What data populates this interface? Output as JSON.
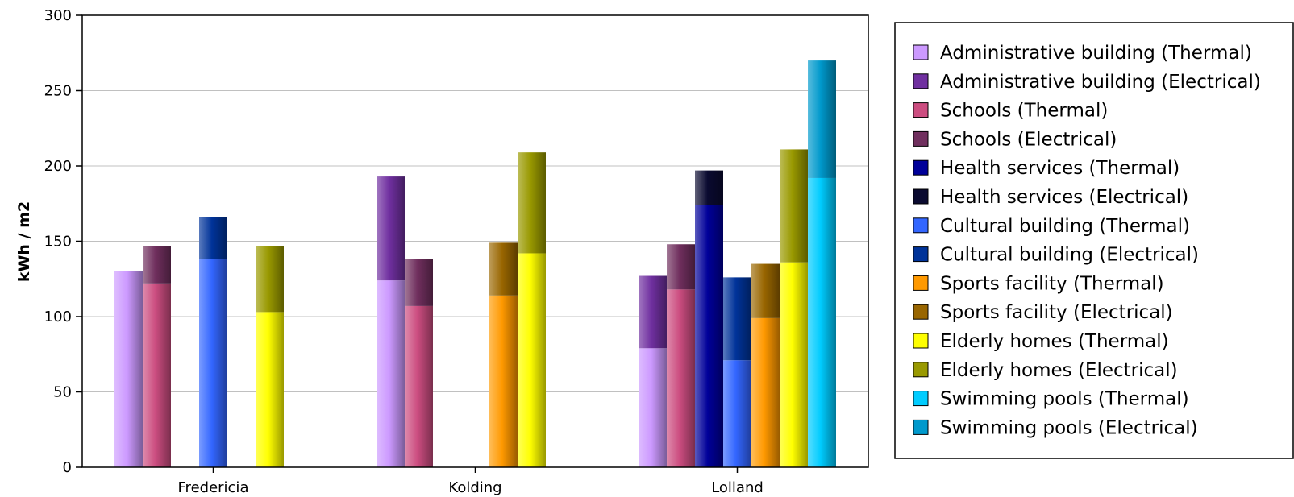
{
  "chart_data": {
    "type": "bar",
    "stacked_groups": true,
    "title": "",
    "xlabel": "",
    "ylabel": "kWh / m2",
    "ylim": [
      0,
      300
    ],
    "yticks": [
      0,
      50,
      100,
      150,
      200,
      250,
      300
    ],
    "grid": true,
    "legend_position": "right",
    "categories": [
      "Fredericia",
      "Kolding",
      "Lolland"
    ],
    "building_types": [
      "Administrative building",
      "Schools",
      "Health services",
      "Cultural building",
      "Sports facility",
      "Elderly homes",
      "Swimming pools"
    ],
    "series": [
      {
        "name": "Administrative building (Thermal)",
        "type_index": 0,
        "component": "thermal",
        "color": "#cc99ff",
        "values": [
          130,
          124,
          79
        ]
      },
      {
        "name": "Administrative building (Electrical)",
        "type_index": 0,
        "component": "electrical",
        "color": "#7030a0",
        "values": [
          0,
          69,
          48
        ]
      },
      {
        "name": "Schools (Thermal)",
        "type_index": 1,
        "component": "thermal",
        "color": "#cc4d80",
        "values": [
          122,
          107,
          118
        ]
      },
      {
        "name": "Schools (Electrical)",
        "type_index": 1,
        "component": "electrical",
        "color": "#702f5e",
        "values": [
          25,
          31,
          30
        ]
      },
      {
        "name": "Health services (Thermal)",
        "type_index": 2,
        "component": "thermal",
        "color": "#000099",
        "values": [
          0,
          0,
          174
        ]
      },
      {
        "name": "Health services (Electrical)",
        "type_index": 2,
        "component": "electrical",
        "color": "#0a0a30",
        "values": [
          0,
          0,
          23
        ]
      },
      {
        "name": "Cultural building (Thermal)",
        "type_index": 3,
        "component": "thermal",
        "color": "#3366ff",
        "values": [
          138,
          0,
          71
        ]
      },
      {
        "name": "Cultural building (Electrical)",
        "type_index": 3,
        "component": "electrical",
        "color": "#003399",
        "values": [
          28,
          0,
          55
        ]
      },
      {
        "name": "Sports facility (Thermal)",
        "type_index": 4,
        "component": "thermal",
        "color": "#ff9900",
        "values": [
          0,
          114,
          99
        ]
      },
      {
        "name": "Sports facility (Electrical)",
        "type_index": 4,
        "component": "electrical",
        "color": "#996600",
        "values": [
          0,
          35,
          36
        ]
      },
      {
        "name": "Elderly homes (Thermal)",
        "type_index": 5,
        "component": "thermal",
        "color": "#ffff00",
        "values": [
          103,
          142,
          136
        ]
      },
      {
        "name": "Elderly homes (Electrical)",
        "type_index": 5,
        "component": "electrical",
        "color": "#999900",
        "values": [
          44,
          67,
          75
        ]
      },
      {
        "name": "Swimming pools (Thermal)",
        "type_index": 6,
        "component": "thermal",
        "color": "#00ccff",
        "values": [
          0,
          0,
          192
        ]
      },
      {
        "name": "Swimming pools (Electrical)",
        "type_index": 6,
        "component": "electrical",
        "color": "#0099cc",
        "values": [
          0,
          0,
          78
        ]
      }
    ]
  }
}
